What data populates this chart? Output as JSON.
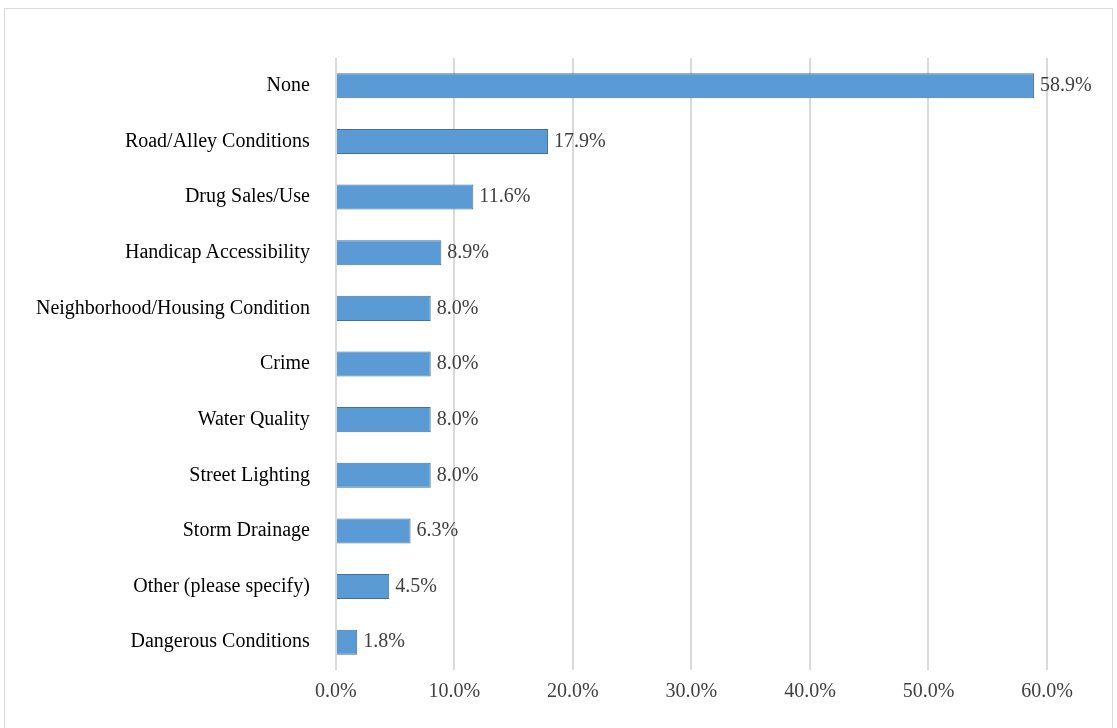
{
  "chart_data": {
    "type": "bar",
    "orientation": "horizontal",
    "categories": [
      "None",
      "Road/Alley Conditions",
      "Drug Sales/Use",
      "Handicap Accessibility",
      "Neighborhood/Housing Condition",
      "Crime",
      "Water Quality",
      "Street Lighting",
      "Storm Drainage",
      "Other (please specify)",
      "Dangerous Conditions"
    ],
    "values": [
      58.9,
      17.9,
      11.6,
      8.9,
      8.0,
      8.0,
      8.0,
      8.0,
      6.3,
      4.5,
      1.8
    ],
    "value_labels": [
      "58.9%",
      "17.9%",
      "11.6%",
      "8.9%",
      "8.0%",
      "8.0%",
      "8.0%",
      "8.0%",
      "6.3%",
      "4.5%",
      "1.8%"
    ],
    "color": "#5b9bd5",
    "xlim": [
      0,
      60
    ],
    "xticks": [
      {
        "value": 0,
        "label": "0.0%"
      },
      {
        "value": 10,
        "label": "10.0%"
      },
      {
        "value": 20,
        "label": "20.0%"
      },
      {
        "value": 30,
        "label": "30.0%"
      },
      {
        "value": 40,
        "label": "40.0%"
      },
      {
        "value": 50,
        "label": "50.0%"
      },
      {
        "value": 60,
        "label": "60.0%"
      }
    ],
    "grid": "x",
    "legend": false
  }
}
